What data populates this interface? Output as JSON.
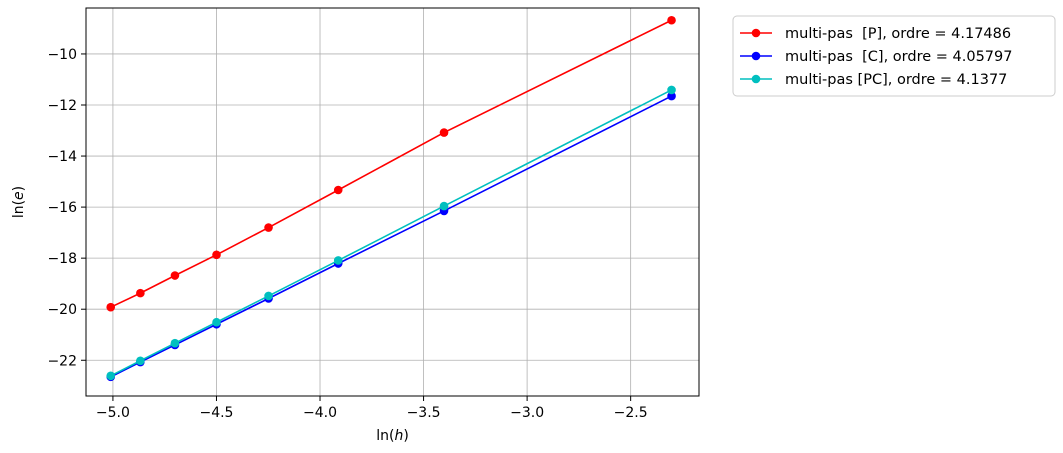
{
  "chart_data": {
    "type": "line",
    "xlabel_base": "ln(",
    "xlabel_var": "h",
    "xlabel_close": ")",
    "ylabel_base": "ln(",
    "ylabel_var": "e",
    "ylabel_close": ")",
    "xlim": [
      -5.13,
      -2.17
    ],
    "ylim": [
      -23.4,
      -8.2
    ],
    "xticks": [
      -5.0,
      -4.5,
      -4.0,
      -3.5,
      -3.0,
      -2.5
    ],
    "xtick_labels": [
      "−5.0",
      "−4.5",
      "−4.0",
      "−3.5",
      "−3.0",
      "−2.5"
    ],
    "yticks": [
      -22,
      -20,
      -18,
      -16,
      -14,
      -12,
      -10
    ],
    "ytick_labels": [
      "−22",
      "−20",
      "−18",
      "−16",
      "−14",
      "−12",
      "−10"
    ],
    "grid": true,
    "legend_position": "outside top-right",
    "x": [
      -5.0106,
      -4.8675,
      -4.7005,
      -4.4998,
      -4.2485,
      -3.912,
      -3.4012,
      -2.3026
    ],
    "series": [
      {
        "name": "multi-pas  [P], ordre = 4.17486",
        "color": "#ff0000",
        "values": [
          -19.92,
          -19.37,
          -18.68,
          -17.87,
          -16.8,
          -15.33,
          -13.08,
          -8.68
        ]
      },
      {
        "name": "multi-pas  [C], ordre = 4.05797",
        "color": "#0000ff",
        "values": [
          -22.65,
          -22.07,
          -21.4,
          -20.59,
          -19.58,
          -18.21,
          -16.15,
          -11.65
        ]
      },
      {
        "name": "multi-pas [PC], ordre = 4.1377",
        "color": "#00bfbf",
        "values": [
          -22.61,
          -22.02,
          -21.33,
          -20.51,
          -19.48,
          -18.09,
          -15.96,
          -11.41
        ]
      }
    ]
  }
}
